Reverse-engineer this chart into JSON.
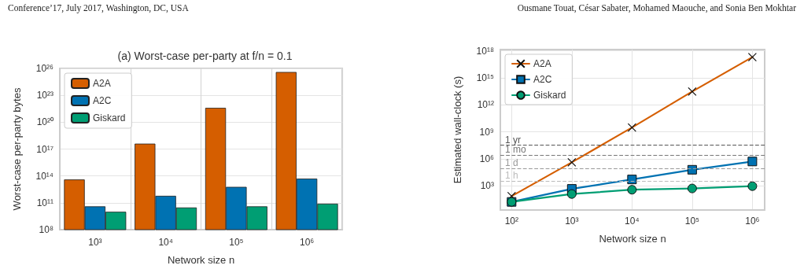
{
  "chart_data": [
    {
      "type": "bar",
      "title": "(a) Worst-case per-party at f/n = 0.1",
      "xlabel": "Network size n",
      "ylabel": "Worst-case per-party bytes",
      "annotations": [
        "Conference’17, July 2017, Washington, DC, USA"
      ],
      "categories": [
        "10³",
        "10⁴",
        "10⁵",
        "10⁶"
      ],
      "series": [
        {
          "name": "A2A",
          "color": "#d55e00",
          "values": [
            40000000000000.0,
            4e+17,
            4e+21,
            4e+25
          ]
        },
        {
          "name": "A2C",
          "color": "#0072b2",
          "values": [
            40000000000.0,
            600000000000.0,
            6000000000000.0,
            50000000000000.0
          ]
        },
        {
          "name": "Giskard",
          "color": "#009e73",
          "values": [
            10000000000.0,
            30000000000.0,
            40000000000.0,
            80000000000.0
          ]
        }
      ],
      "log": "y",
      "ylim": [
        100000000.0,
        1e+26
      ],
      "yticks": [
        {
          "value": 100000000.0,
          "label": "10⁸"
        },
        {
          "value": 100000000000.0,
          "label": "10¹¹"
        },
        {
          "value": 100000000000000.0,
          "label": "10¹⁴"
        },
        {
          "value": 1e+17,
          "label": "10¹⁷"
        },
        {
          "value": 1e+20,
          "label": "10²⁰"
        },
        {
          "value": 1e+23,
          "label": "10²³"
        },
        {
          "value": 1e+26,
          "label": "10²⁶"
        }
      ],
      "grid": true,
      "legend": "top left"
    },
    {
      "type": "line",
      "xlabel": "Network size n",
      "ylabel": "Estimated wall-clock (s)",
      "annotations": [
        "Ousmane Touat, César Sabater, Mohamed Maouche, and Sonia Ben Mokhtar"
      ],
      "x": [
        100,
        1000,
        10000,
        100000,
        1000000
      ],
      "series": [
        {
          "name": "A2A",
          "color": "#d55e00",
          "marker": "cross",
          "values": [
            70,
            400000.0,
            3000000000.0,
            30000000000000.0,
            2e+17
          ]
        },
        {
          "name": "A2C",
          "color": "#0072b2",
          "marker": "square",
          "values": [
            16,
            450,
            5000,
            60000,
            500000
          ]
        },
        {
          "name": "Giskard",
          "color": "#009e73",
          "marker": "circle",
          "values": [
            16,
            120,
            360,
            500,
            900
          ]
        }
      ],
      "log": "xy",
      "xlim": [
        65,
        1600000
      ],
      "ylim": [
        2,
        1.4e+18
      ],
      "xticks": [
        {
          "value": 100,
          "label": "10²"
        },
        {
          "value": 1000,
          "label": "10³"
        },
        {
          "value": 10000,
          "label": "10⁴"
        },
        {
          "value": 100000,
          "label": "10⁵"
        },
        {
          "value": 1000000,
          "label": "10⁶"
        }
      ],
      "yticks": [
        {
          "value": 1000,
          "label": "10³"
        },
        {
          "value": 1000000.0,
          "label": "10⁶"
        },
        {
          "value": 1000000000.0,
          "label": "10⁹"
        },
        {
          "value": 1000000000000.0,
          "label": "10¹²"
        },
        {
          "value": 1000000000000000.0,
          "label": "10¹⁵"
        },
        {
          "value": 1e+18,
          "label": "10¹⁸"
        }
      ],
      "ref_lines": [
        {
          "axis": "y",
          "value": 31536000,
          "label": "1 yr",
          "color": "#555555",
          "line_style": "dashed"
        },
        {
          "axis": "y",
          "value": 2592000,
          "label": "1 mo",
          "color": "#777777",
          "line_style": "dashed"
        },
        {
          "axis": "y",
          "value": 86400,
          "label": "1 d",
          "color": "#999999",
          "line_style": "dashed"
        },
        {
          "axis": "y",
          "value": 3600,
          "label": "1 h",
          "color": "#bbbbbb",
          "line_style": "dashed"
        }
      ],
      "grid": true,
      "legend": "top left",
      "line_style": "solid"
    }
  ]
}
